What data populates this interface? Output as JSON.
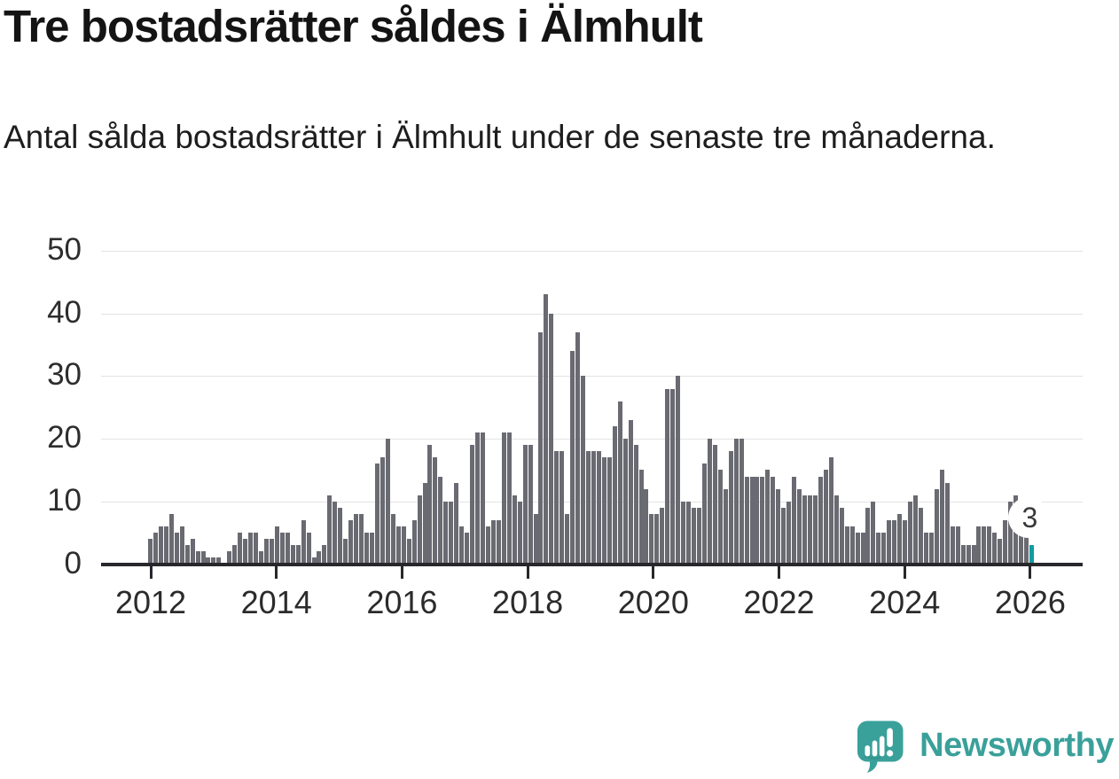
{
  "header": {
    "title": "Tre bostadsrätter såldes i Älmhult",
    "subtitle": "Antal sålda bostadsrätter i Älmhult under de senaste tre månaderna."
  },
  "chart_data": {
    "type": "bar",
    "title": "Tre bostadsrätter såldes i Älmhult",
    "subtitle": "Antal sålda bostadsrätter i Älmhult under de senaste tre månaderna.",
    "x_unit": "month",
    "x_start": "2012-01",
    "x_end": "2025-12",
    "xticks": [
      "2012",
      "2014",
      "2016",
      "2018",
      "2020",
      "2022",
      "2024",
      "2026"
    ],
    "yticks": [
      "0",
      "10",
      "20",
      "30",
      "40",
      "50"
    ],
    "ylim": [
      0,
      50
    ],
    "grid": true,
    "series": [
      {
        "name": "Antal sålda bostadsrätter",
        "values_by_year": {
          "2012": [
            4,
            5,
            6,
            6,
            8,
            5,
            6,
            3,
            4,
            2,
            2,
            1
          ],
          "2013": [
            1,
            1,
            0,
            2,
            3,
            5,
            4,
            5,
            5,
            2,
            4,
            4
          ],
          "2014": [
            6,
            5,
            5,
            3,
            3,
            7,
            5,
            1,
            2,
            3,
            11,
            10
          ],
          "2015": [
            9,
            4,
            7,
            8,
            8,
            5,
            5,
            16,
            17,
            20,
            8,
            6
          ],
          "2016": [
            6,
            4,
            7,
            11,
            13,
            19,
            17,
            14,
            10,
            10,
            13,
            6
          ],
          "2017": [
            5,
            19,
            21,
            21,
            6,
            7,
            7,
            21,
            21,
            11,
            10,
            19
          ],
          "2018": [
            19,
            8,
            37,
            43,
            40,
            18,
            18,
            8,
            34,
            37,
            30,
            18
          ],
          "2019": [
            18,
            18,
            17,
            17,
            22,
            26,
            20,
            23,
            19,
            15,
            12,
            8
          ],
          "2020": [
            8,
            9,
            28,
            28,
            30,
            10,
            10,
            9,
            9,
            16,
            20,
            19
          ],
          "2021": [
            15,
            12,
            18,
            20,
            20,
            14,
            14,
            14,
            14,
            15,
            14,
            12
          ],
          "2022": [
            9,
            10,
            14,
            12,
            11,
            11,
            11,
            14,
            15,
            17,
            11,
            9
          ],
          "2023": [
            6,
            6,
            5,
            5,
            9,
            10,
            5,
            5,
            7,
            7,
            8,
            7
          ],
          "2024": [
            10,
            11,
            9,
            5,
            5,
            12,
            15,
            13,
            6,
            6,
            3,
            3
          ],
          "2025": [
            3,
            6,
            6,
            6,
            5,
            4,
            7,
            10,
            11,
            9,
            5,
            3
          ]
        }
      }
    ],
    "highlight": {
      "position": "last",
      "value": 3,
      "label": "3",
      "color": "#129c9e"
    },
    "bar_color": "#6a6a72",
    "axis_color": "#28282c",
    "gridline_color": "#e4e4e6",
    "legend": "none"
  },
  "logo": {
    "text": "Newsworthy",
    "color": "#3aa09a",
    "icon": "newsworthy-speech-bubble-chart-icon"
  }
}
